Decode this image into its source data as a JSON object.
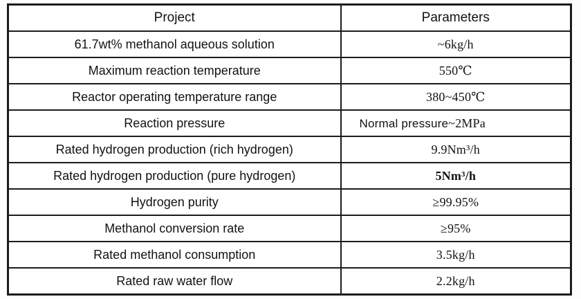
{
  "colors": {
    "border": "#1b1b1b",
    "text": "#121212",
    "background": "#ffffff"
  },
  "table": {
    "headers": {
      "project": "Project",
      "parameters": "Parameters"
    },
    "rows": [
      {
        "project": "61.7wt% methanol aqueous solution",
        "parameter": "~6kg/h"
      },
      {
        "project": "Maximum reaction temperature",
        "parameter": "550℃"
      },
      {
        "project": "Reactor operating temperature range",
        "parameter": "380~450℃"
      },
      {
        "project": "Reaction pressure",
        "parameter_prefix": "Normal pressure",
        "parameter_suffix": "~2MPa"
      },
      {
        "project": "Rated hydrogen production (rich hydrogen)",
        "parameter": "9.9Nm³/h"
      },
      {
        "project": "Rated hydrogen production (pure hydrogen)",
        "parameter": "5Nm³/h"
      },
      {
        "project": "Hydrogen purity",
        "parameter": "≥99.95%"
      },
      {
        "project": "Methanol conversion rate",
        "parameter": "≥95%"
      },
      {
        "project": "Rated methanol consumption",
        "parameter": "3.5kg/h"
      },
      {
        "project": "Rated raw water flow",
        "parameter": "2.2kg/h"
      }
    ]
  }
}
